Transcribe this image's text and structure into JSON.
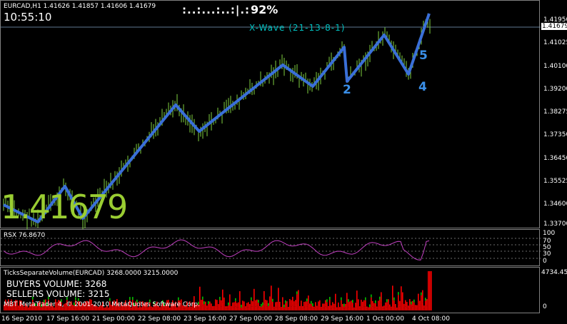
{
  "header": {
    "symbol_info": "EURCAD,H1  1.41626 1.41857 1.41606 1.41679",
    "clock": "10:55:10",
    "progress_dots": ":..:...:..:|.:",
    "progress_pct": "92%",
    "wave_label": "X-Wave (21-13-8-1)",
    "big_price": "1.41679"
  },
  "price_axis": {
    "ticks": [
      "1.41950",
      "1.41025",
      "1.40100",
      "1.39200",
      "1.38275",
      "1.37350",
      "1.36450",
      "1.35525",
      "1.34600",
      "1.33700"
    ],
    "current_price": "1.41679",
    "current_price_bg": "#ffffff"
  },
  "wave_labels": [
    {
      "text": "2"
    },
    {
      "text": "4"
    },
    {
      "text": "5"
    }
  ],
  "rsx": {
    "title": "RSX 76.8670",
    "levels": [
      "100",
      "70",
      "50",
      "30",
      "0"
    ],
    "color": "#c040c0"
  },
  "volume": {
    "title": "TicksSeparateVolume(EURCAD) 3268.0000 3215.0000",
    "buyers": "BUYERS VOLUME: 3268",
    "sellers": "SELLERS VOLUME: 3215",
    "copyright": "MBT MetaTrader 4, © 2001-2010 MetaQuotes Software Corp.",
    "max_label": "4734.45",
    "min_label": "0",
    "buy_color": "#00c000",
    "sell_color": "#ff0000"
  },
  "time_axis": [
    "16 Sep 2010",
    "17 Sep 16:00",
    "21 Sep 00:00",
    "22 Sep 08:00",
    "23 Sep 16:00",
    "27 Sep 00:00",
    "28 Sep 08:00",
    "29 Sep 16:00",
    "1 Oct 00:00",
    "4 Oct 08:00"
  ],
  "colors": {
    "wave_line": "#3a6fd8",
    "candles": "#7fcf3f",
    "big_price": "#9acd32",
    "wave_text": "#00c0c0"
  }
}
